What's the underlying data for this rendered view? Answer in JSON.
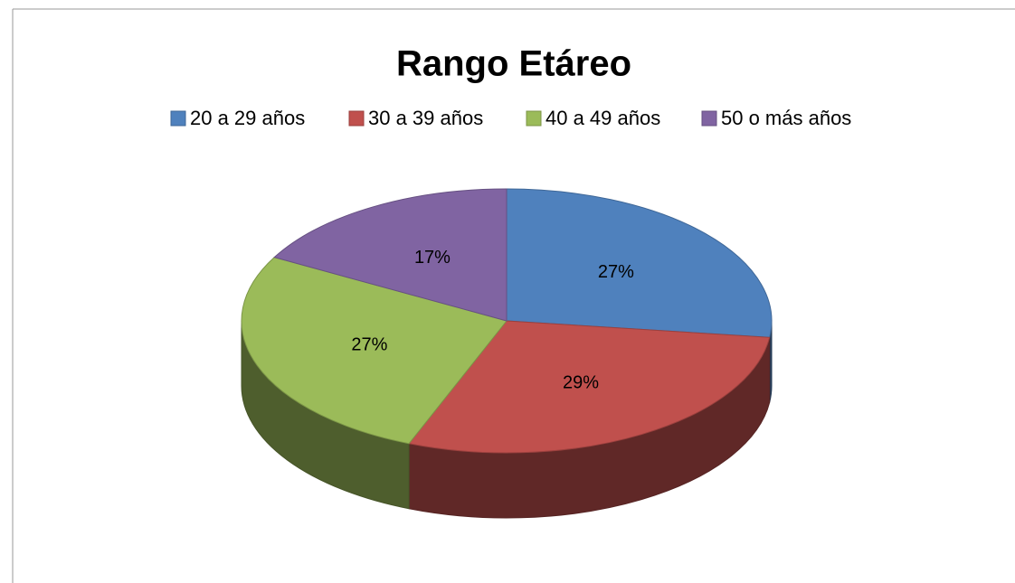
{
  "chart_data": {
    "type": "pie",
    "title": "Rango Etáreo",
    "categories": [
      "20 a 29 años",
      "30 a 39 años",
      "40 a 49 años",
      "50 o más años"
    ],
    "values": [
      27,
      29,
      27,
      17
    ],
    "value_labels": [
      "27%",
      "29%",
      "27%",
      "17%"
    ],
    "colors": [
      "#4f81bd",
      "#c0504d",
      "#9bbb59",
      "#8064a2"
    ],
    "legend": "top"
  }
}
